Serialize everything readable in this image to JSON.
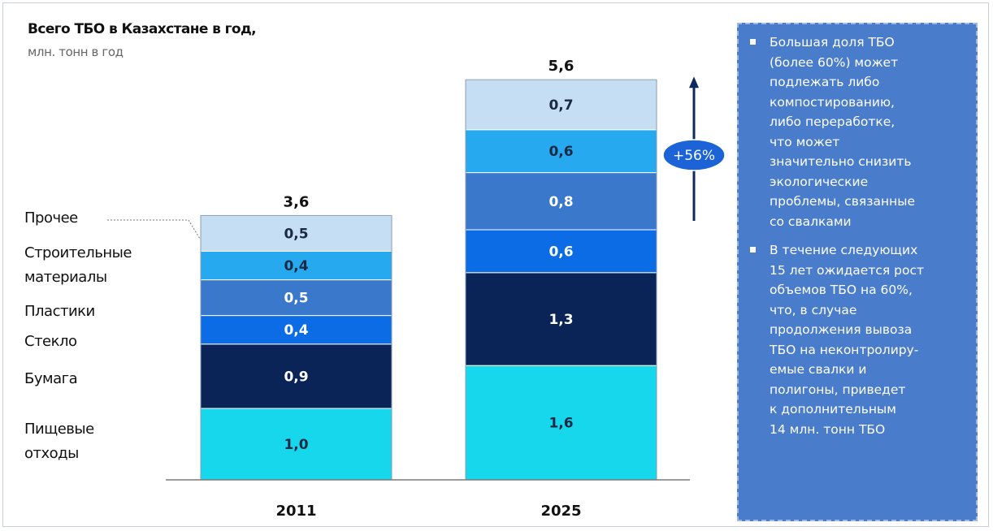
{
  "chart_data": {
    "type": "bar",
    "stacked": true,
    "title": "Всего ТБО в Казахстане в год,",
    "subtitle": "млн. тонн в год",
    "categories": [
      "2011",
      "2025"
    ],
    "totals": [
      "3,6",
      "5,6"
    ],
    "series": [
      {
        "name": "Пищевые отходы",
        "values": [
          1.0,
          1.6
        ],
        "labels": [
          "1,0",
          "1,6"
        ],
        "color": "#17d7ec"
      },
      {
        "name": "Бумага",
        "values": [
          0.9,
          1.3
        ],
        "labels": [
          "0,9",
          "1,3"
        ],
        "color": "#0a2458"
      },
      {
        "name": "Стекло",
        "values": [
          0.4,
          0.6
        ],
        "labels": [
          "0,4",
          "0,6"
        ],
        "color": "#0b6ce6"
      },
      {
        "name": "Пластики",
        "values": [
          0.5,
          0.8
        ],
        "labels": [
          "0,5",
          "0,8"
        ],
        "color": "#3a78cc"
      },
      {
        "name": "Строительные материалы",
        "values": [
          0.4,
          0.6
        ],
        "labels": [
          "0,4",
          "0,6"
        ],
        "color": "#26a9ee"
      },
      {
        "name": "Прочее",
        "values": [
          0.5,
          0.7
        ],
        "labels": [
          "0,5",
          "0,7"
        ],
        "color": "#c5def4"
      }
    ],
    "growth_annotation": "+56%",
    "ylim": [
      0,
      5.6
    ],
    "grid": false,
    "legend_position": "left"
  },
  "legend_labels": [
    {
      "lines": [
        "Прочее"
      ]
    },
    {
      "lines": [
        "Строительные",
        "материалы"
      ]
    },
    {
      "lines": [
        "Пластики"
      ]
    },
    {
      "lines": [
        "Стекло"
      ]
    },
    {
      "lines": [
        "Бумага"
      ]
    },
    {
      "lines": [
        "Пищевые",
        "отходы"
      ]
    }
  ],
  "side_panel": {
    "background": "#4a7ccc",
    "bullets": [
      {
        "lines": [
          "Большая доля ТБО",
          "(более 60%) может",
          "подлежать либо",
          "компостированию,",
          "либо переработке,",
          "что может",
          "значительно снизить",
          "экологические",
          "проблемы, связанные",
          "со свалками"
        ]
      },
      {
        "lines": [
          "В течение следующих",
          "15 лет ожидается рост",
          "объемов ТБО на 60%,",
          "что, в случае",
          "продолжения вывоза",
          "ТБО на неконтролиру-",
          "емые свалки и",
          "полигоны, приведет",
          "к дополнительным",
          "14 млн. тонн ТБО"
        ]
      }
    ]
  },
  "colors": {
    "bar_label_dark": "#1b2a44",
    "bar_label_light": "#ffffff",
    "arrow": "#0d2a5c",
    "axis": "#7a7a7a",
    "badge_fill": "#1b63d6",
    "badge_text": "#ffffff"
  }
}
